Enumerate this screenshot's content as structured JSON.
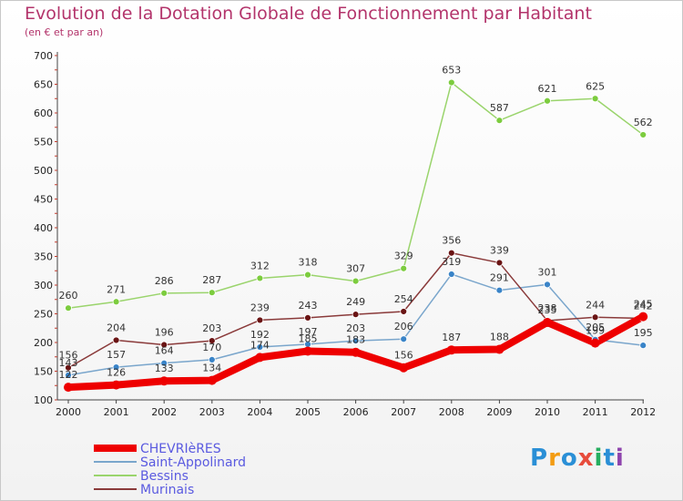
{
  "header": {
    "title": "Evolution de la Dotation Globale de Fonctionnement par Habitant",
    "subtitle": "(en € et par an)"
  },
  "logo": {
    "text": "Proxiti",
    "letters": [
      "P",
      "r",
      "o",
      "x",
      "i",
      "t",
      "i"
    ],
    "colors": [
      "#2a8fd6",
      "#f39c12",
      "#2a8fd6",
      "#e74c3c",
      "#27ae60",
      "#2a8fd6",
      "#8e44ad"
    ]
  },
  "chart_data": {
    "type": "line",
    "title": "Evolution de la Dotation Globale de Fonctionnement par Habitant",
    "subtitle": "(en € et par an)",
    "xlabel": "",
    "ylabel": "",
    "x": [
      "2000",
      "2001",
      "2002",
      "2003",
      "2004",
      "2005",
      "2006",
      "2007",
      "2008",
      "2009",
      "2010",
      "2011",
      "2012"
    ],
    "ylim": [
      100,
      700
    ],
    "yticks": [
      100,
      150,
      200,
      250,
      300,
      350,
      400,
      450,
      500,
      550,
      600,
      650,
      700
    ],
    "grid": false,
    "legend_position": "bottom-left",
    "series": [
      {
        "name": "CHEVRIèRES",
        "color": "#ee0000",
        "point_color": "#ee0000",
        "width": 8,
        "radius": 5,
        "values": [
          122,
          126,
          133,
          134,
          174,
          185,
          183,
          156,
          187,
          188,
          235,
          199,
          245
        ],
        "labels": [
          "122",
          "126",
          "133",
          "134",
          "174",
          "185",
          "183",
          "156",
          "187",
          "188",
          "235",
          "199",
          "245"
        ]
      },
      {
        "name": "Saint-Appolinard",
        "color": "#7aa6cc",
        "point_color": "#3a84c8",
        "width": 1.5,
        "radius": 3.5,
        "values": [
          143,
          157,
          164,
          170,
          192,
          197,
          203,
          206,
          319,
          291,
          301,
          205,
          195
        ],
        "labels": [
          "143",
          "157",
          "164",
          "170",
          "192",
          "197",
          "203",
          "206",
          "319",
          "291",
          "301",
          "205",
          "195"
        ]
      },
      {
        "name": "Bessins",
        "color": "#9ad46c",
        "point_color": "#7ccc3e",
        "width": 1.5,
        "radius": 3.5,
        "values": [
          260,
          271,
          286,
          287,
          312,
          318,
          307,
          329,
          653,
          587,
          621,
          625,
          562
        ],
        "labels": [
          "260",
          "271",
          "286",
          "287",
          "312",
          "318",
          "307",
          "329",
          "653",
          "587",
          "621",
          "625",
          "562"
        ]
      },
      {
        "name": "Murinais",
        "color": "#8a3a3a",
        "point_color": "#6a1414",
        "width": 1.5,
        "radius": 3.5,
        "values": [
          156,
          204,
          196,
          203,
          239,
          243,
          249,
          254,
          356,
          339,
          238,
          244,
          242
        ],
        "labels": [
          "156",
          "204",
          "196",
          "203",
          "239",
          "243",
          "249",
          "254",
          "356",
          "339",
          "238",
          "244",
          "242"
        ]
      }
    ]
  }
}
